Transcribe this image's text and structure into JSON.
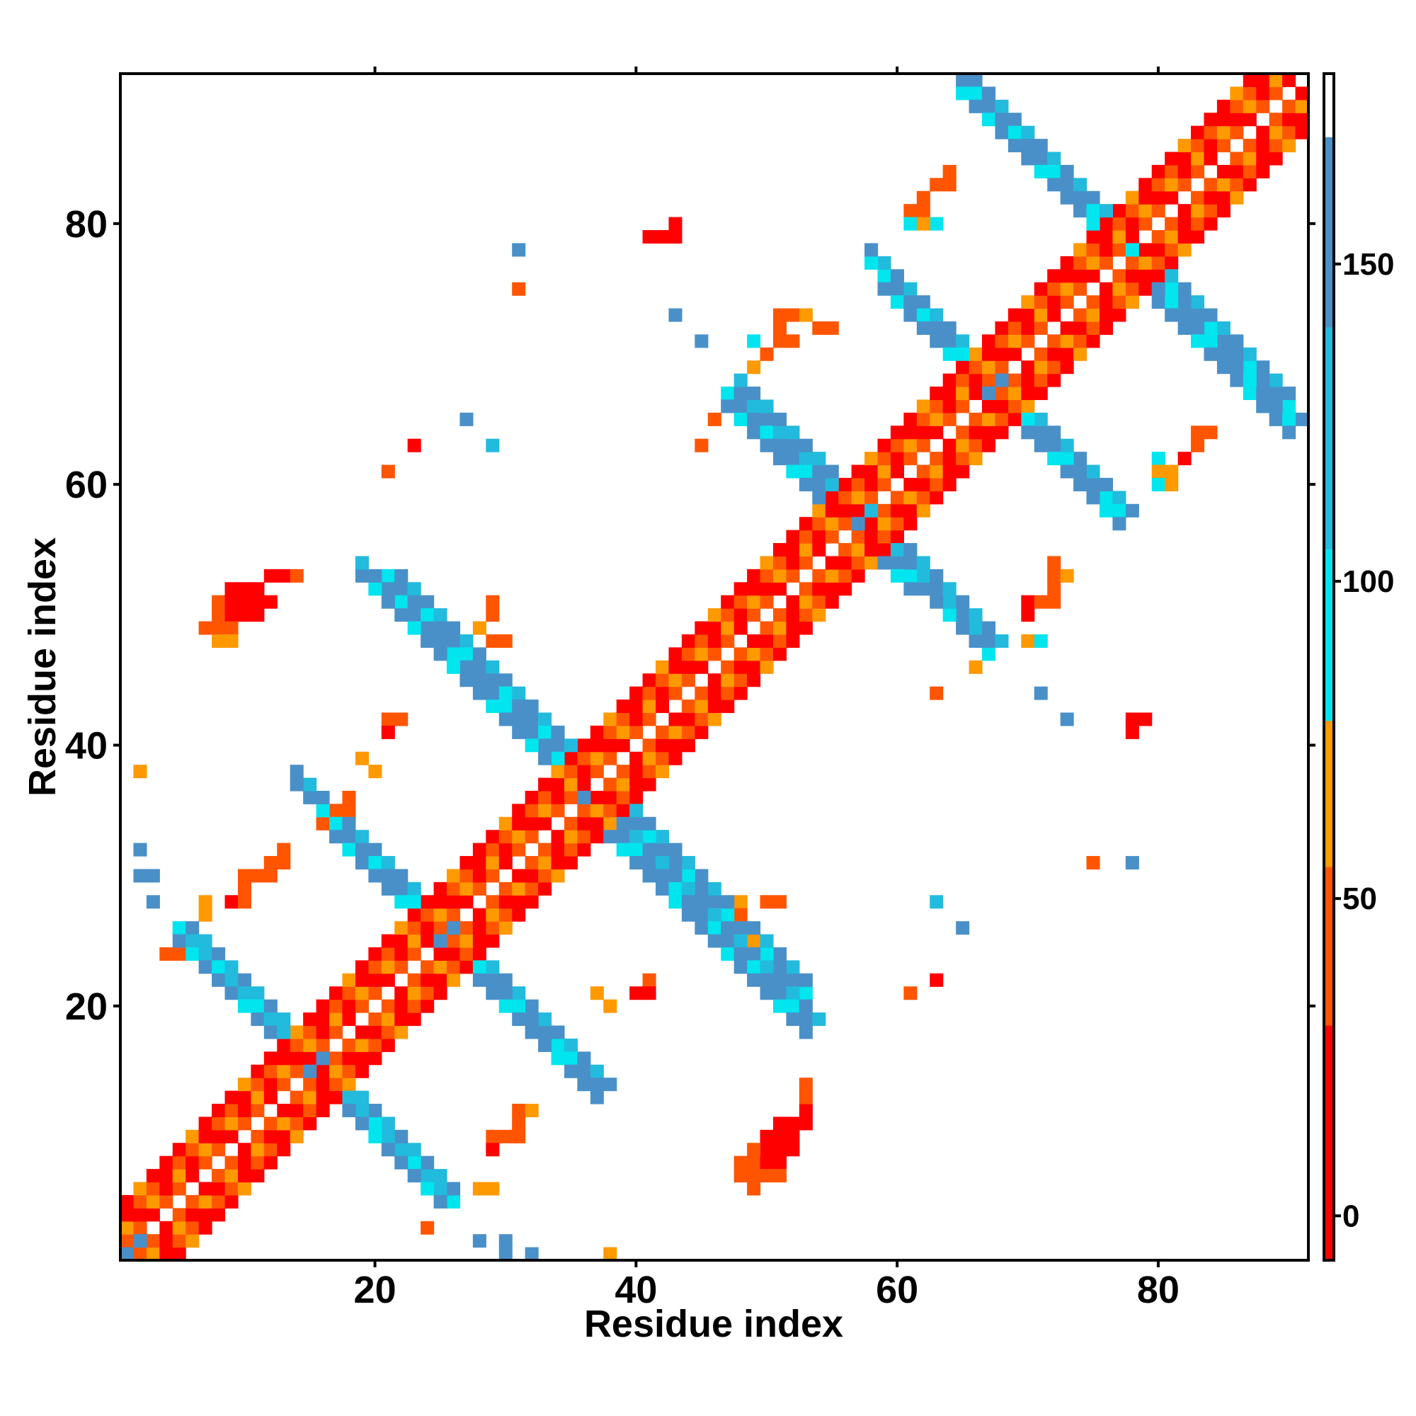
{
  "chart_data": {
    "type": "heatmap",
    "title": "",
    "xlabel": "Residue index",
    "ylabel": "Residue index",
    "xlim": [
      0.5,
      91.5
    ],
    "ylim": [
      0.5,
      91.5
    ],
    "x_ticks": [
      20,
      40,
      60,
      80
    ],
    "y_ticks": [
      20,
      40,
      60,
      80
    ],
    "colorbar": {
      "ticks": [
        0,
        50,
        100,
        150
      ],
      "range": [
        -7,
        180
      ],
      "segments": [
        {
          "from": -7,
          "to": 30,
          "color": "#ff0000"
        },
        {
          "from": 30,
          "to": 55,
          "color": "#ff5500"
        },
        {
          "from": 55,
          "to": 78,
          "color": "#ff9900"
        },
        {
          "from": 78,
          "to": 105,
          "color": "#00e5ee"
        },
        {
          "from": 105,
          "to": 140,
          "color": "#22bbdd"
        },
        {
          "from": 140,
          "to": 170,
          "color": "#4a90c8"
        },
        {
          "from": 170,
          "to": 180,
          "color": "#ffffff"
        }
      ]
    },
    "palette": {
      "red": "#ff0000",
      "red_orange": "#ff3000",
      "orange": "#ff6a00",
      "amber": "#ff9500",
      "cyan": "#00e5ee",
      "sky": "#22bbdd",
      "steel": "#4a90c8"
    },
    "diagonal_helix_band": {
      "note_values": "offset i+1..i+4 along diagonal, values 0-75",
      "range": [
        1,
        91
      ]
    },
    "cells": [
      {
        "x": 9,
        "y": 52,
        "v": 5
      },
      {
        "x": 10,
        "y": 52,
        "v": 5
      },
      {
        "x": 11,
        "y": 52,
        "v": 15
      },
      {
        "x": 12,
        "y": 53,
        "v": 15
      },
      {
        "x": 13,
        "y": 53,
        "v": 15
      },
      {
        "x": 14,
        "y": 53,
        "v": 40
      },
      {
        "x": 8,
        "y": 51,
        "v": 40
      },
      {
        "x": 9,
        "y": 51,
        "v": 10
      },
      {
        "x": 10,
        "y": 51,
        "v": 10
      },
      {
        "x": 11,
        "y": 51,
        "v": 10
      },
      {
        "x": 12,
        "y": 51,
        "v": 15
      },
      {
        "x": 8,
        "y": 50,
        "v": 40
      },
      {
        "x": 9,
        "y": 50,
        "v": 15
      },
      {
        "x": 10,
        "y": 50,
        "v": 15
      },
      {
        "x": 11,
        "y": 50,
        "v": 15
      },
      {
        "x": 7,
        "y": 49,
        "v": 45
      },
      {
        "x": 8,
        "y": 49,
        "v": 45
      },
      {
        "x": 9,
        "y": 49,
        "v": 45
      },
      {
        "x": 8,
        "y": 48,
        "v": 55
      },
      {
        "x": 9,
        "y": 48,
        "v": 55
      },
      {
        "x": 50,
        "y": 10,
        "v": 5
      },
      {
        "x": 51,
        "y": 10,
        "v": 5
      },
      {
        "x": 52,
        "y": 10,
        "v": 15
      },
      {
        "x": 50,
        "y": 9,
        "v": 10
      },
      {
        "x": 51,
        "y": 9,
        "v": 10
      },
      {
        "x": 52,
        "y": 9,
        "v": 15
      },
      {
        "x": 49,
        "y": 9,
        "v": 40
      },
      {
        "x": 53,
        "y": 11,
        "v": 15
      },
      {
        "x": 52,
        "y": 11,
        "v": 15
      },
      {
        "x": 51,
        "y": 11,
        "v": 15
      },
      {
        "x": 53,
        "y": 12,
        "v": 15
      },
      {
        "x": 53,
        "y": 13,
        "v": 30
      },
      {
        "x": 53,
        "y": 14,
        "v": 40
      },
      {
        "x": 48,
        "y": 8,
        "v": 45
      },
      {
        "x": 49,
        "y": 8,
        "v": 45
      },
      {
        "x": 50,
        "y": 8,
        "v": 15
      },
      {
        "x": 51,
        "y": 8,
        "v": 15
      },
      {
        "x": 48,
        "y": 7,
        "v": 45
      },
      {
        "x": 49,
        "y": 7,
        "v": 45
      },
      {
        "x": 50,
        "y": 7,
        "v": 45
      },
      {
        "x": 51,
        "y": 7,
        "v": 45
      },
      {
        "x": 49,
        "y": 6,
        "v": 45
      },
      {
        "x": 21,
        "y": 42,
        "v": 40
      },
      {
        "x": 22,
        "y": 42,
        "v": 40
      },
      {
        "x": 21,
        "y": 41,
        "v": 25
      },
      {
        "x": 19,
        "y": 39,
        "v": 65
      },
      {
        "x": 20,
        "y": 38,
        "v": 65
      },
      {
        "x": 2,
        "y": 38,
        "v": 65
      },
      {
        "x": 18,
        "y": 36,
        "v": 40
      },
      {
        "x": 17,
        "y": 35,
        "v": 40
      },
      {
        "x": 18,
        "y": 35,
        "v": 40
      },
      {
        "x": 16,
        "y": 34,
        "v": 40
      },
      {
        "x": 13,
        "y": 32,
        "v": 40
      },
      {
        "x": 12,
        "y": 31,
        "v": 40
      },
      {
        "x": 13,
        "y": 31,
        "v": 40
      },
      {
        "x": 10,
        "y": 30,
        "v": 40
      },
      {
        "x": 11,
        "y": 30,
        "v": 40
      },
      {
        "x": 12,
        "y": 30,
        "v": 40
      },
      {
        "x": 10,
        "y": 29,
        "v": 40
      },
      {
        "x": 9,
        "y": 28,
        "v": 25
      },
      {
        "x": 10,
        "y": 28,
        "v": 40
      },
      {
        "x": 7,
        "y": 28,
        "v": 65
      },
      {
        "x": 7,
        "y": 27,
        "v": 65
      },
      {
        "x": 2,
        "y": 32,
        "v": 145
      },
      {
        "x": 2,
        "y": 30,
        "v": 145
      },
      {
        "x": 3,
        "y": 30,
        "v": 145
      },
      {
        "x": 3,
        "y": 28,
        "v": 145
      },
      {
        "x": 4,
        "y": 24,
        "v": 40
      },
      {
        "x": 5,
        "y": 24,
        "v": 40
      },
      {
        "x": 23,
        "y": 63,
        "v": 25
      },
      {
        "x": 21,
        "y": 61,
        "v": 40
      },
      {
        "x": 27,
        "y": 65,
        "v": 145
      },
      {
        "x": 29,
        "y": 63,
        "v": 120
      },
      {
        "x": 31,
        "y": 78,
        "v": 145
      },
      {
        "x": 31,
        "y": 75,
        "v": 40
      },
      {
        "x": 43,
        "y": 80,
        "v": 25
      },
      {
        "x": 41,
        "y": 79,
        "v": 25
      },
      {
        "x": 42,
        "y": 79,
        "v": 25
      },
      {
        "x": 43,
        "y": 79,
        "v": 25
      },
      {
        "x": 43,
        "y": 73,
        "v": 145
      },
      {
        "x": 45,
        "y": 71,
        "v": 145
      },
      {
        "x": 49,
        "y": 71,
        "v": 95
      },
      {
        "x": 49,
        "y": 69,
        "v": 65
      },
      {
        "x": 50,
        "y": 70,
        "v": 40
      },
      {
        "x": 51,
        "y": 71,
        "v": 40
      },
      {
        "x": 51,
        "y": 72,
        "v": 40
      },
      {
        "x": 51,
        "y": 73,
        "v": 40
      },
      {
        "x": 52,
        "y": 73,
        "v": 40
      },
      {
        "x": 53,
        "y": 73,
        "v": 65
      },
      {
        "x": 54,
        "y": 72,
        "v": 40
      },
      {
        "x": 55,
        "y": 72,
        "v": 40
      },
      {
        "x": 52,
        "y": 71,
        "v": 40
      },
      {
        "x": 46,
        "y": 65,
        "v": 40
      },
      {
        "x": 45,
        "y": 63,
        "v": 40
      },
      {
        "x": 29,
        "y": 51,
        "v": 40
      },
      {
        "x": 29,
        "y": 50,
        "v": 40
      },
      {
        "x": 28,
        "y": 49,
        "v": 65
      },
      {
        "x": 29,
        "y": 48,
        "v": 40
      },
      {
        "x": 30,
        "y": 48,
        "v": 40
      },
      {
        "x": 37,
        "y": 21,
        "v": 65
      },
      {
        "x": 38,
        "y": 20,
        "v": 65
      },
      {
        "x": 41,
        "y": 22,
        "v": 40
      },
      {
        "x": 41,
        "y": 21,
        "v": 25
      },
      {
        "x": 40,
        "y": 21,
        "v": 25
      },
      {
        "x": 31,
        "y": 12,
        "v": 40
      },
      {
        "x": 32,
        "y": 12,
        "v": 65
      },
      {
        "x": 31,
        "y": 11,
        "v": 40
      },
      {
        "x": 29,
        "y": 10,
        "v": 40
      },
      {
        "x": 30,
        "y": 10,
        "v": 40
      },
      {
        "x": 31,
        "y": 10,
        "v": 40
      },
      {
        "x": 29,
        "y": 9,
        "v": 25
      },
      {
        "x": 28,
        "y": 6,
        "v": 65
      },
      {
        "x": 29,
        "y": 6,
        "v": 65
      },
      {
        "x": 24,
        "y": 3,
        "v": 40
      },
      {
        "x": 28,
        "y": 2,
        "v": 145
      },
      {
        "x": 30,
        "y": 2,
        "v": 145
      },
      {
        "x": 30,
        "y": 1,
        "v": 145
      },
      {
        "x": 32,
        "y": 1,
        "v": 145
      },
      {
        "x": 38,
        "y": 1,
        "v": 65
      },
      {
        "x": 48,
        "y": 28,
        "v": 65
      },
      {
        "x": 48,
        "y": 27,
        "v": 40
      },
      {
        "x": 49,
        "y": 25,
        "v": 65
      },
      {
        "x": 50,
        "y": 28,
        "v": 40
      },
      {
        "x": 51,
        "y": 28,
        "v": 40
      },
      {
        "x": 63,
        "y": 28,
        "v": 120
      },
      {
        "x": 65,
        "y": 26,
        "v": 145
      },
      {
        "x": 63,
        "y": 22,
        "v": 25
      },
      {
        "x": 61,
        "y": 21,
        "v": 40
      },
      {
        "x": 75,
        "y": 31,
        "v": 40
      },
      {
        "x": 78,
        "y": 31,
        "v": 145
      },
      {
        "x": 78,
        "y": 42,
        "v": 25
      },
      {
        "x": 79,
        "y": 42,
        "v": 25
      },
      {
        "x": 78,
        "y": 41,
        "v": 25
      },
      {
        "x": 71,
        "y": 44,
        "v": 145
      },
      {
        "x": 73,
        "y": 42,
        "v": 145
      },
      {
        "x": 63,
        "y": 44,
        "v": 40
      },
      {
        "x": 66,
        "y": 46,
        "v": 65
      },
      {
        "x": 70,
        "y": 48,
        "v": 65
      },
      {
        "x": 71,
        "y": 48,
        "v": 95
      },
      {
        "x": 72,
        "y": 54,
        "v": 40
      },
      {
        "x": 72,
        "y": 53,
        "v": 40
      },
      {
        "x": 73,
        "y": 53,
        "v": 65
      },
      {
        "x": 72,
        "y": 52,
        "v": 40
      },
      {
        "x": 70,
        "y": 51,
        "v": 25
      },
      {
        "x": 71,
        "y": 51,
        "v": 40
      },
      {
        "x": 72,
        "y": 51,
        "v": 40
      },
      {
        "x": 70,
        "y": 50,
        "v": 25
      },
      {
        "x": 80,
        "y": 62,
        "v": 95
      },
      {
        "x": 80,
        "y": 61,
        "v": 65
      },
      {
        "x": 81,
        "y": 61,
        "v": 65
      },
      {
        "x": 80,
        "y": 60,
        "v": 95
      },
      {
        "x": 81,
        "y": 60,
        "v": 65
      },
      {
        "x": 82,
        "y": 62,
        "v": 25
      },
      {
        "x": 83,
        "y": 63,
        "v": 40
      },
      {
        "x": 83,
        "y": 64,
        "v": 40
      },
      {
        "x": 84,
        "y": 64,
        "v": 40
      },
      {
        "x": 62,
        "y": 82,
        "v": 40
      },
      {
        "x": 63,
        "y": 83,
        "v": 40
      },
      {
        "x": 64,
        "y": 83,
        "v": 40
      },
      {
        "x": 64,
        "y": 84,
        "v": 40
      },
      {
        "x": 61,
        "y": 81,
        "v": 40
      },
      {
        "x": 61,
        "y": 80,
        "v": 95
      },
      {
        "x": 62,
        "y": 81,
        "v": 40
      },
      {
        "x": 63,
        "y": 80,
        "v": 95
      },
      {
        "x": 62,
        "y": 80,
        "v": 65
      },
      {
        "x": 65,
        "y": 91,
        "v": 145
      },
      {
        "x": 66,
        "y": 91,
        "v": 145
      },
      {
        "x": 91,
        "y": 65,
        "v": 145
      }
    ],
    "cross_bands": [
      {
        "x": 1,
        "y": 2,
        "len": 6,
        "dir": "up",
        "v": 110
      },
      {
        "x": 5,
        "y": 26,
        "len": 10,
        "dir": "down",
        "v": 130
      },
      {
        "x": 15,
        "y": 16,
        "len": 11,
        "dir": "down-right",
        "v": 130
      },
      {
        "x": 21,
        "y": 53,
        "len": 15,
        "dir": "down-right",
        "v": 140
      },
      {
        "x": 17,
        "y": 34,
        "len": 21,
        "dir": "down-right",
        "v": 140
      },
      {
        "x": 34,
        "y": 38,
        "len": 20,
        "dir": "down-right",
        "v": 140
      },
      {
        "x": 47,
        "y": 67,
        "len": 15,
        "dir": "down-right",
        "v": 140
      },
      {
        "x": 56,
        "y": 59,
        "len": 12,
        "dir": "down-right",
        "v": 140
      },
      {
        "x": 59,
        "y": 76,
        "len": 19,
        "dir": "down-right",
        "v": 140
      },
      {
        "x": 66,
        "y": 90,
        "len": 14,
        "dir": "down-right",
        "v": 140
      },
      {
        "x": 78,
        "y": 77,
        "len": 13,
        "dir": "down-right",
        "v": 140
      }
    ]
  }
}
